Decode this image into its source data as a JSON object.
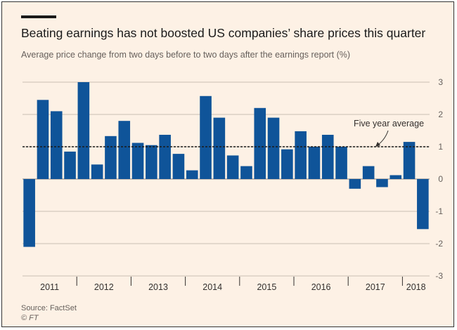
{
  "header": {
    "title": "Beating earnings has not boosted US companies’ share prices this quarter",
    "subtitle": "Average price change from two days before to two days after the earnings report (%)"
  },
  "footer": {
    "source": "Source: FactSet",
    "credit": "© FT"
  },
  "colors": {
    "background": "#fdf1e5",
    "bar": "#0f5499",
    "grid": "#c9beb3",
    "axis_text": "#66605c",
    "text": "#1a1a1a"
  },
  "chart_data": {
    "type": "bar",
    "title": "Beating earnings has not boosted US companies’ share prices this quarter",
    "ylabel": "Average price change from two days before to two days after the earnings report (%)",
    "ylim": [
      -3,
      3
    ],
    "yticks": [
      -3,
      -2,
      -1,
      0,
      1,
      2,
      3
    ],
    "years": [
      {
        "label": "2011",
        "quarters": 4
      },
      {
        "label": "2012",
        "quarters": 4
      },
      {
        "label": "2013",
        "quarters": 4
      },
      {
        "label": "2014",
        "quarters": 4
      },
      {
        "label": "2015",
        "quarters": 4
      },
      {
        "label": "2016",
        "quarters": 4
      },
      {
        "label": "2017",
        "quarters": 4
      },
      {
        "label": "2018",
        "quarters": 2
      }
    ],
    "values": [
      -2.1,
      2.45,
      2.1,
      0.85,
      3.0,
      0.45,
      1.33,
      1.8,
      1.12,
      1.05,
      1.37,
      0.78,
      0.27,
      2.57,
      1.9,
      0.73,
      0.4,
      2.2,
      1.9,
      0.92,
      1.48,
      1.0,
      1.37,
      1.0,
      -0.3,
      0.4,
      -0.25,
      0.12,
      1.15,
      -1.55
    ],
    "reference_line": {
      "label": "Five year average",
      "value": 1.0
    }
  }
}
